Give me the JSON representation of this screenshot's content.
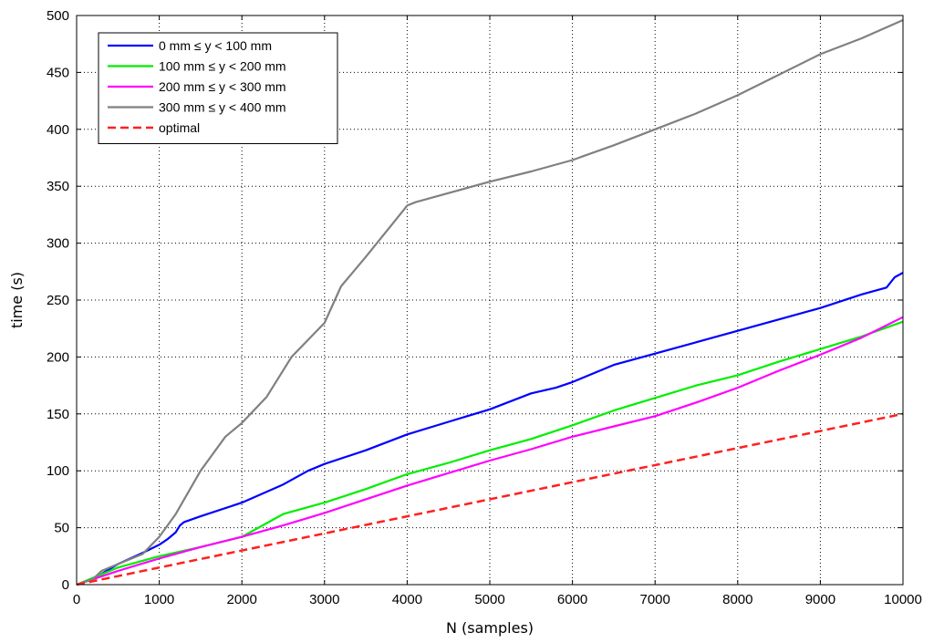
{
  "chart_data": {
    "type": "line",
    "xlabel": "N (samples)",
    "ylabel": "time (s)",
    "xlim": [
      0,
      10000
    ],
    "ylim": [
      0,
      500
    ],
    "xticks": [
      0,
      1000,
      2000,
      3000,
      4000,
      5000,
      6000,
      7000,
      8000,
      9000,
      10000
    ],
    "yticks": [
      0,
      50,
      100,
      150,
      200,
      250,
      300,
      350,
      400,
      450,
      500
    ],
    "grid": true,
    "legend_position": "top-left",
    "series": [
      {
        "name": "0 mm ≤ y < 100 mm",
        "color": "#0000ff",
        "dash": "solid",
        "x": [
          0,
          200,
          500,
          800,
          1000,
          1100,
          1200,
          1250,
          1300,
          1500,
          2000,
          2500,
          2800,
          3000,
          3500,
          4000,
          4500,
          5000,
          5500,
          5800,
          6000,
          6500,
          7000,
          7500,
          8000,
          8500,
          9000,
          9500,
          9800,
          9900,
          10000
        ],
        "y": [
          0,
          5,
          18,
          28,
          35,
          40,
          46,
          52,
          55,
          60,
          72,
          88,
          100,
          106,
          118,
          132,
          143,
          154,
          168,
          173,
          178,
          193,
          203,
          213,
          223,
          233,
          243,
          255,
          261,
          270,
          274
        ]
      },
      {
        "name": "100 mm ≤ y < 200 mm",
        "color": "#00ee00",
        "dash": "solid",
        "x": [
          0,
          500,
          1000,
          1500,
          2000,
          2500,
          3000,
          3500,
          4000,
          4500,
          5000,
          5500,
          6000,
          6500,
          7000,
          7500,
          8000,
          8500,
          9000,
          9500,
          10000
        ],
        "y": [
          0,
          15,
          25,
          33,
          42,
          62,
          72,
          84,
          97,
          107,
          118,
          128,
          140,
          153,
          164,
          175,
          184,
          196,
          207,
          218,
          231
        ]
      },
      {
        "name": "200 mm ≤ y < 300 mm",
        "color": "#ff00ff",
        "dash": "solid",
        "x": [
          0,
          500,
          1000,
          1500,
          2000,
          2500,
          3000,
          3500,
          4000,
          4500,
          5000,
          5500,
          6000,
          6500,
          7000,
          7500,
          8000,
          8500,
          9000,
          9500,
          10000
        ],
        "y": [
          0,
          12,
          23,
          33,
          42,
          52,
          63,
          75,
          87,
          98,
          109,
          119,
          130,
          139,
          148,
          160,
          173,
          188,
          202,
          217,
          235
        ]
      },
      {
        "name": "300 mm ≤ y < 400 mm",
        "color": "#808080",
        "dash": "solid",
        "x": [
          0,
          200,
          300,
          500,
          800,
          1000,
          1200,
          1500,
          1800,
          2000,
          2300,
          2600,
          3000,
          3200,
          3500,
          3800,
          4000,
          4100,
          4500,
          5000,
          5500,
          6000,
          6500,
          7000,
          7500,
          8000,
          8500,
          9000,
          9500,
          10000
        ],
        "y": [
          0,
          5,
          12,
          18,
          27,
          42,
          62,
          100,
          130,
          142,
          165,
          200,
          230,
          262,
          288,
          315,
          333,
          336,
          344,
          354,
          363,
          373,
          386,
          400,
          414,
          430,
          448,
          466,
          480,
          496
        ]
      },
      {
        "name": "optimal",
        "color": "#ff2020",
        "dash": "dashed",
        "x": [
          0,
          10000
        ],
        "y": [
          0,
          150
        ]
      }
    ]
  }
}
